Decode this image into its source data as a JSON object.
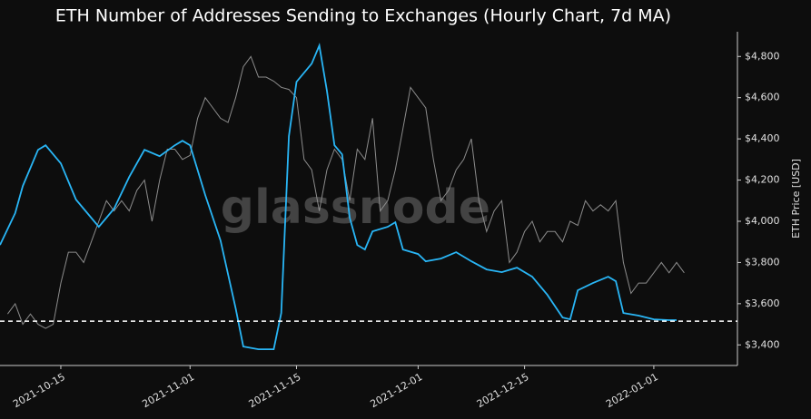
{
  "chart_data": {
    "type": "line",
    "title": "ETH Number of Addresses Sending to Exchanges (Hourly Chart, 7d MA)",
    "y_label": "ETH Price [USD]",
    "watermark": "glassnode",
    "background": "#0d0d0d",
    "xlim": [
      "2021-10-07",
      "2022-01-12"
    ],
    "xticks": [
      "2021-10-15",
      "2021-11-01",
      "2021-11-15",
      "2021-12-01",
      "2021-12-15",
      "2022-01-01"
    ],
    "ylim": [
      3300,
      4920
    ],
    "yticks": [
      {
        "value": 3400,
        "label": "$3,400"
      },
      {
        "value": 3600,
        "label": "$3,600"
      },
      {
        "value": 3800,
        "label": "$3,800"
      },
      {
        "value": 4000,
        "label": "$4,000"
      },
      {
        "value": 4200,
        "label": "$4,200"
      },
      {
        "value": 4400,
        "label": "$4,400"
      },
      {
        "value": 4600,
        "label": "$4,600"
      },
      {
        "value": 4800,
        "label": "$4,800"
      }
    ],
    "hline": 3515,
    "hline_color": "#ffffff",
    "series": [
      {
        "color": "#8c8c8c",
        "x": [
          "2021-10-08",
          "2021-10-09",
          "2021-10-10",
          "2021-10-11",
          "2021-10-12",
          "2021-10-13",
          "2021-10-14",
          "2021-10-15",
          "2021-10-16",
          "2021-10-17",
          "2021-10-18",
          "2021-10-19",
          "2021-10-20",
          "2021-10-21",
          "2021-10-22",
          "2021-10-23",
          "2021-10-24",
          "2021-10-25",
          "2021-10-26",
          "2021-10-27",
          "2021-10-28",
          "2021-10-29",
          "2021-10-30",
          "2021-10-31",
          "2021-11-01",
          "2021-11-02",
          "2021-11-03",
          "2021-11-04",
          "2021-11-05",
          "2021-11-06",
          "2021-11-07",
          "2021-11-08",
          "2021-11-09",
          "2021-11-10",
          "2021-11-11",
          "2021-11-12",
          "2021-11-13",
          "2021-11-14",
          "2021-11-15",
          "2021-11-16",
          "2021-11-17",
          "2021-11-18",
          "2021-11-19",
          "2021-11-20",
          "2021-11-21",
          "2021-11-22",
          "2021-11-23",
          "2021-11-24",
          "2021-11-25",
          "2021-11-26",
          "2021-11-27",
          "2021-11-28",
          "2021-11-29",
          "2021-11-30",
          "2021-12-01",
          "2021-12-02",
          "2021-12-03",
          "2021-12-04",
          "2021-12-05",
          "2021-12-06",
          "2021-12-07",
          "2021-12-08",
          "2021-12-09",
          "2021-12-10",
          "2021-12-11",
          "2021-12-12",
          "2021-12-13",
          "2021-12-14",
          "2021-12-15",
          "2021-12-16",
          "2021-12-17",
          "2021-12-18",
          "2021-12-19",
          "2021-12-20",
          "2021-12-21",
          "2021-12-22",
          "2021-12-23",
          "2021-12-24",
          "2021-12-25",
          "2021-12-26",
          "2021-12-27",
          "2021-12-28",
          "2021-12-29",
          "2021-12-30",
          "2021-12-31",
          "2022-01-01",
          "2022-01-02",
          "2022-01-03",
          "2022-01-04",
          "2022-01-05"
        ],
        "values": [
          3550,
          3600,
          3500,
          3550,
          3500,
          3480,
          3500,
          3700,
          3850,
          3850,
          3800,
          3900,
          4000,
          4100,
          4050,
          4100,
          4050,
          4150,
          4200,
          4000,
          4200,
          4350,
          4350,
          4300,
          4320,
          4500,
          4600,
          4550,
          4500,
          4480,
          4600,
          4750,
          4800,
          4700,
          4700,
          4680,
          4650,
          4640,
          4600,
          4300,
          4250,
          4050,
          4250,
          4350,
          4300,
          4100,
          4350,
          4300,
          4500,
          4050,
          4100,
          4250,
          4450,
          4650,
          4600,
          4550,
          4300,
          4100,
          4150,
          4250,
          4300,
          4400,
          4100,
          3950,
          4050,
          4100,
          3800,
          3850,
          3950,
          4000,
          3900,
          3950,
          3950,
          3900,
          4000,
          3980,
          4100,
          4050,
          4080,
          4050,
          4100,
          3800,
          3650,
          3700,
          3700,
          3750,
          3800,
          3750,
          3800,
          3750
        ]
      },
      {
        "color": "#29b6f6",
        "x": [
          "2021-10-07",
          "2021-10-09",
          "2021-10-10",
          "2021-10-12",
          "2021-10-13",
          "2021-10-15",
          "2021-10-17",
          "2021-10-20",
          "2021-10-22",
          "2021-10-24",
          "2021-10-26",
          "2021-10-28",
          "2021-10-30",
          "2021-10-31",
          "2021-11-01",
          "2021-11-03",
          "2021-11-05",
          "2021-11-07",
          "2021-11-08",
          "2021-11-10",
          "2021-11-12",
          "2021-11-13",
          "2021-11-14",
          "2021-11-15",
          "2021-11-17",
          "2021-11-18",
          "2021-11-19",
          "2021-11-20",
          "2021-11-21",
          "2021-11-22",
          "2021-11-23",
          "2021-11-24",
          "2021-11-25",
          "2021-11-27",
          "2021-11-28",
          "2021-11-29",
          "2021-12-01",
          "2021-12-02",
          "2021-12-04",
          "2021-12-06",
          "2021-12-08",
          "2021-12-10",
          "2021-12-12",
          "2021-12-14",
          "2021-12-16",
          "2021-12-18",
          "2021-12-20",
          "2021-12-21",
          "2021-12-22",
          "2021-12-24",
          "2021-12-26",
          "2021-12-27",
          "2021-12-28",
          "2021-12-30",
          "2022-01-01",
          "2022-01-03",
          "2022-01-04"
        ],
        "values": [
          3885,
          4039,
          4171,
          4347,
          4369,
          4281,
          4105,
          3973,
          4061,
          4215,
          4347,
          4316,
          4369,
          4391,
          4369,
          4127,
          3907,
          3577,
          3392,
          3379,
          3379,
          3555,
          4413,
          4677,
          4765,
          4853,
          4633,
          4369,
          4325,
          4017,
          3885,
          3863,
          3951,
          3973,
          3995,
          3863,
          3841,
          3806,
          3819,
          3850,
          3806,
          3766,
          3753,
          3775,
          3731,
          3643,
          3533,
          3524,
          3665,
          3700,
          3731,
          3709,
          3555,
          3542,
          3524,
          3520,
          3520
        ]
      }
    ]
  }
}
